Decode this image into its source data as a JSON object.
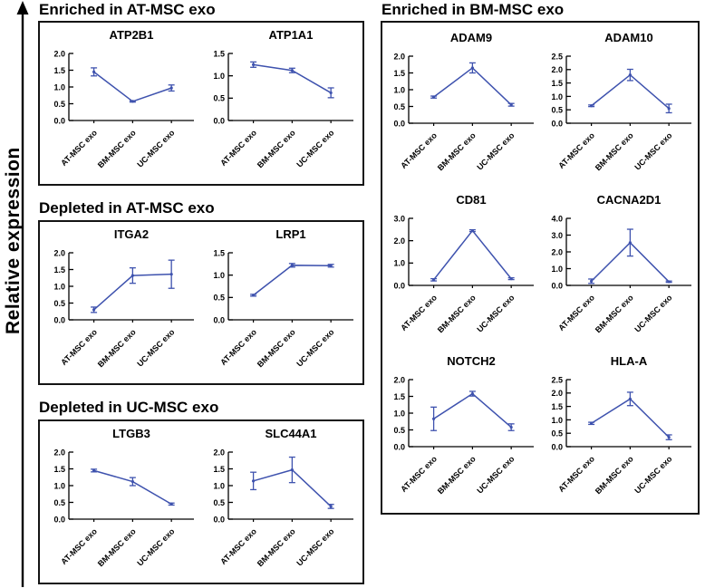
{
  "figure": {
    "y_axis_label": "Relative expression",
    "sections": [
      {
        "heading": "Enriched in AT-MSC exo"
      },
      {
        "heading": "Depleted in AT-MSC exo"
      },
      {
        "heading": "Depleted in UC-MSC exo"
      },
      {
        "heading": "Enriched in BM-MSC exo"
      }
    ]
  },
  "categories": [
    "AT-MSC exo",
    "BM-MSC exo",
    "UC-MSC exo"
  ],
  "colors": {
    "line": "#3E52AE",
    "axis": "#000000",
    "text": "#000000",
    "border": "#141414"
  },
  "chart_data": [
    {
      "type": "line",
      "section": "Enriched in AT-MSC exo",
      "title": "ATP2B1",
      "categories": [
        "AT-MSC exo",
        "BM-MSC exo",
        "UC-MSC exo"
      ],
      "values": [
        1.45,
        0.57,
        0.97
      ],
      "errors": [
        0.12,
        0.02,
        0.09
      ],
      "ylim": [
        0,
        2.0
      ],
      "ytick": 0.5
    },
    {
      "type": "line",
      "section": "Enriched in AT-MSC exo",
      "title": "ATP1A1",
      "categories": [
        "AT-MSC exo",
        "BM-MSC exo",
        "UC-MSC exo"
      ],
      "values": [
        1.25,
        1.12,
        0.62
      ],
      "errors": [
        0.06,
        0.05,
        0.11
      ],
      "ylim": [
        0,
        1.5
      ],
      "ytick": 0.5
    },
    {
      "type": "line",
      "section": "Depleted in AT-MSC exo",
      "title": "ITGA2",
      "categories": [
        "AT-MSC exo",
        "BM-MSC exo",
        "UC-MSC exo"
      ],
      "values": [
        0.3,
        1.32,
        1.36
      ],
      "errors": [
        0.08,
        0.23,
        0.42
      ],
      "ylim": [
        0,
        2.0
      ],
      "ytick": 0.5
    },
    {
      "type": "line",
      "section": "Depleted in AT-MSC exo",
      "title": "LRP1",
      "categories": [
        "AT-MSC exo",
        "BM-MSC exo",
        "UC-MSC exo"
      ],
      "values": [
        0.55,
        1.22,
        1.21
      ],
      "errors": [
        0.02,
        0.04,
        0.03
      ],
      "ylim": [
        0,
        1.5
      ],
      "ytick": 0.5
    },
    {
      "type": "line",
      "section": "Depleted in UC-MSC exo",
      "title": "LTGB3",
      "categories": [
        "AT-MSC exo",
        "BM-MSC exo",
        "UC-MSC exo"
      ],
      "values": [
        1.45,
        1.12,
        0.45
      ],
      "errors": [
        0.04,
        0.12,
        0.03
      ],
      "ylim": [
        0,
        2.0
      ],
      "ytick": 0.5
    },
    {
      "type": "line",
      "section": "Depleted in UC-MSC exo",
      "title": "SLC44A1",
      "categories": [
        "AT-MSC exo",
        "BM-MSC exo",
        "UC-MSC exo"
      ],
      "values": [
        1.14,
        1.47,
        0.38
      ],
      "errors": [
        0.26,
        0.38,
        0.06
      ],
      "ylim": [
        0,
        2.0
      ],
      "ytick": 0.5
    },
    {
      "type": "line",
      "section": "Enriched in BM-MSC exo",
      "title": "ADAM9",
      "categories": [
        "AT-MSC exo",
        "BM-MSC exo",
        "UC-MSC exo"
      ],
      "values": [
        0.78,
        1.65,
        0.55
      ],
      "errors": [
        0.03,
        0.15,
        0.04
      ],
      "ylim": [
        0,
        2.0
      ],
      "ytick": 0.5
    },
    {
      "type": "line",
      "section": "Enriched in BM-MSC exo",
      "title": "ADAM10",
      "categories": [
        "AT-MSC exo",
        "BM-MSC exo",
        "UC-MSC exo"
      ],
      "values": [
        0.65,
        1.8,
        0.55
      ],
      "errors": [
        0.03,
        0.21,
        0.16
      ],
      "ylim": [
        0,
        2.5
      ],
      "ytick": 0.5
    },
    {
      "type": "line",
      "section": "Enriched in BM-MSC exo",
      "title": "CD81",
      "categories": [
        "AT-MSC exo",
        "BM-MSC exo",
        "UC-MSC exo"
      ],
      "values": [
        0.25,
        2.45,
        0.3
      ],
      "errors": [
        0.05,
        0.04,
        0.04
      ],
      "ylim": [
        0,
        3.0
      ],
      "ytick": 1.0
    },
    {
      "type": "line",
      "section": "Enriched in BM-MSC exo",
      "title": "CACNA2D1",
      "categories": [
        "AT-MSC exo",
        "BM-MSC exo",
        "UC-MSC exo"
      ],
      "values": [
        0.25,
        2.55,
        0.22
      ],
      "errors": [
        0.13,
        0.8,
        0.04
      ],
      "ylim": [
        0,
        4.0
      ],
      "ytick": 1.0
    },
    {
      "type": "line",
      "section": "Enriched in BM-MSC exo",
      "title": "NOTCH2",
      "categories": [
        "AT-MSC exo",
        "BM-MSC exo",
        "UC-MSC exo"
      ],
      "values": [
        0.83,
        1.58,
        0.58
      ],
      "errors": [
        0.35,
        0.07,
        0.1
      ],
      "ylim": [
        0,
        2.0
      ],
      "ytick": 0.5
    },
    {
      "type": "line",
      "section": "Enriched in BM-MSC exo",
      "title": "HLA-A",
      "categories": [
        "AT-MSC exo",
        "BM-MSC exo",
        "UC-MSC exo"
      ],
      "values": [
        0.87,
        1.78,
        0.35
      ],
      "errors": [
        0.04,
        0.25,
        0.09
      ],
      "ylim": [
        0,
        2.5
      ],
      "ytick": 0.5
    }
  ]
}
